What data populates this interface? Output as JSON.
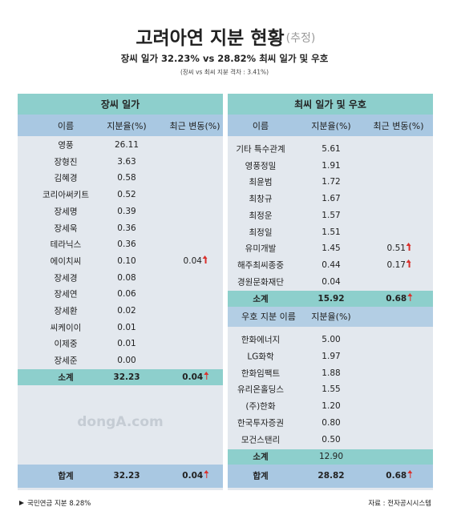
{
  "header": {
    "title": "고려아연 지분 현황",
    "title_note": "(추정)",
    "subtitle": "장씨 일가 32.23% vs 28.82% 최씨 일가 및 우호",
    "note": "(장씨 vs 최씨 지분 격차 : 3.41%)"
  },
  "left": {
    "title": "장씨 일가",
    "columns": [
      "이름",
      "지분율(%)",
      "최근 변동(%)"
    ],
    "rows": [
      {
        "name": "영풍",
        "share": "26.11"
      },
      {
        "name": "장형진",
        "share": "3.63"
      },
      {
        "name": "김혜경",
        "share": "0.58"
      },
      {
        "name": "코리아써키트",
        "share": "0.52"
      },
      {
        "name": "장세명",
        "share": "0.39"
      },
      {
        "name": "장세욱",
        "share": "0.36"
      },
      {
        "name": "테라닉스",
        "share": "0.36"
      },
      {
        "name": "에이치씨",
        "share": "0.10",
        "change": "0.04"
      },
      {
        "name": "장세경",
        "share": "0.08"
      },
      {
        "name": "장세연",
        "share": "0.06"
      },
      {
        "name": "장세환",
        "share": "0.02"
      },
      {
        "name": "씨케이이",
        "share": "0.01"
      },
      {
        "name": "이제중",
        "share": "0.01"
      },
      {
        "name": "장세준",
        "share": "0.00"
      }
    ],
    "subtotal": {
      "name": "소계",
      "share": "32.23",
      "change": "0.04"
    },
    "total": {
      "name": "합계",
      "share": "32.23",
      "change": "0.04"
    }
  },
  "right": {
    "title": "최씨 일가 및 우호",
    "columns": [
      "이름",
      "지분율(%)",
      "최근 변동(%)"
    ],
    "rows": [
      {
        "name": "기타 특수관계",
        "share": "5.61"
      },
      {
        "name": "영풍정밀",
        "share": "1.91"
      },
      {
        "name": "최윤범",
        "share": "1.72"
      },
      {
        "name": "최창규",
        "share": "1.67"
      },
      {
        "name": "최정운",
        "share": "1.57"
      },
      {
        "name": "최정일",
        "share": "1.51"
      },
      {
        "name": "유미개발",
        "share": "1.45",
        "change": "0.51"
      },
      {
        "name": "해주최씨종중",
        "share": "0.44",
        "change": "0.17"
      },
      {
        "name": "경원문화재단",
        "share": "0.04"
      }
    ],
    "subtotal": {
      "name": "소계",
      "share": "15.92",
      "change": "0.68"
    },
    "ally_columns": [
      "우호 지분 이름",
      "지분율(%)"
    ],
    "ally_rows": [
      {
        "name": "한화에너지",
        "share": "5.00"
      },
      {
        "name": "LG화학",
        "share": "1.97"
      },
      {
        "name": "한화임팩트",
        "share": "1.88"
      },
      {
        "name": "유리온홀딩스",
        "share": "1.55"
      },
      {
        "name": "(주)한화",
        "share": "1.20"
      },
      {
        "name": "한국투자증권",
        "share": "0.80"
      },
      {
        "name": "모건스탠리",
        "share": "0.50"
      }
    ],
    "ally_subtotal": {
      "name": "소계",
      "share": "12.90"
    },
    "total": {
      "name": "합계",
      "share": "28.82",
      "change": "0.68"
    }
  },
  "watermark": "dongA.com",
  "footer": {
    "pension": "국민연금 지분 8.28%",
    "source": "자료 : 전자공시시스템"
  }
}
